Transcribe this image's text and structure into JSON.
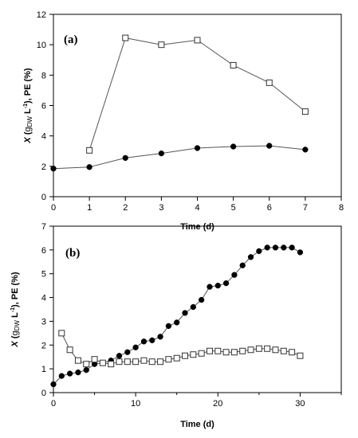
{
  "chart_data": [
    {
      "type": "line",
      "panel_label": "(a)",
      "xlabel": "Time (d)",
      "ylabel": "X (gDW L−1), PE (%)",
      "ylabel_parts": {
        "x": "X",
        "open": " (",
        "g": "g",
        "dw": "DW",
        "l": " L",
        "sup": "-1",
        "close": "), PE (%)"
      },
      "xlim": [
        0,
        8
      ],
      "ylim": [
        0,
        12
      ],
      "xticks": [
        0,
        1,
        2,
        3,
        4,
        5,
        6,
        7,
        8
      ],
      "yticks": [
        0,
        2,
        4,
        6,
        8,
        10,
        12
      ],
      "grid": false,
      "series": [
        {
          "marker": "circle-filled",
          "x": [
            0,
            1,
            2,
            3,
            4,
            5,
            6,
            7
          ],
          "y": [
            1.85,
            1.95,
            2.55,
            2.85,
            3.2,
            3.3,
            3.35,
            3.1
          ]
        },
        {
          "marker": "square-open",
          "x": [
            1,
            2,
            3,
            4,
            5,
            6,
            7
          ],
          "y": [
            3.05,
            10.45,
            10.0,
            10.3,
            8.65,
            7.5,
            5.6
          ]
        }
      ]
    },
    {
      "type": "line",
      "panel_label": "(b)",
      "xlabel": "Time (d)",
      "ylabel": "X (gDW L−1), PE (%)",
      "ylabel_parts": {
        "x": "X",
        "open": " (",
        "g": "g",
        "dw": "DW",
        "l": " L",
        "sup": "-1",
        "close": "), PE (%)"
      },
      "xlim": [
        0,
        35
      ],
      "ylim": [
        0,
        7
      ],
      "xticks": [
        0,
        10,
        20,
        30
      ],
      "yticks": [
        0,
        1,
        2,
        3,
        4,
        5,
        6,
        7
      ],
      "minor_xticks": [
        5,
        15,
        25,
        35
      ],
      "grid": false,
      "series": [
        {
          "marker": "circle-filled",
          "x": [
            0,
            1,
            2,
            3,
            4,
            5,
            6,
            7,
            8,
            9,
            10,
            11,
            12,
            13,
            14,
            15,
            16,
            17,
            18,
            19,
            20,
            21,
            22,
            23,
            24,
            25,
            26,
            27,
            28,
            29,
            30
          ],
          "y": [
            0.35,
            0.7,
            0.8,
            0.85,
            0.95,
            1.2,
            1.25,
            1.35,
            1.55,
            1.7,
            1.9,
            2.15,
            2.2,
            2.35,
            2.8,
            2.95,
            3.35,
            3.6,
            3.9,
            4.45,
            4.5,
            4.6,
            4.95,
            5.35,
            5.7,
            5.95,
            6.1,
            6.1,
            6.1,
            6.1,
            5.9
          ]
        },
        {
          "marker": "square-open",
          "x": [
            1,
            2,
            3,
            4,
            5,
            6,
            7,
            8,
            9,
            10,
            11,
            12,
            13,
            14,
            15,
            16,
            17,
            18,
            19,
            20,
            21,
            22,
            23,
            24,
            25,
            26,
            27,
            28,
            29,
            30
          ],
          "y": [
            2.5,
            1.8,
            1.35,
            1.2,
            1.4,
            1.25,
            1.2,
            1.3,
            1.3,
            1.3,
            1.35,
            1.3,
            1.3,
            1.4,
            1.45,
            1.55,
            1.6,
            1.65,
            1.75,
            1.75,
            1.7,
            1.7,
            1.75,
            1.8,
            1.85,
            1.85,
            1.8,
            1.75,
            1.7,
            1.55
          ]
        }
      ]
    }
  ]
}
